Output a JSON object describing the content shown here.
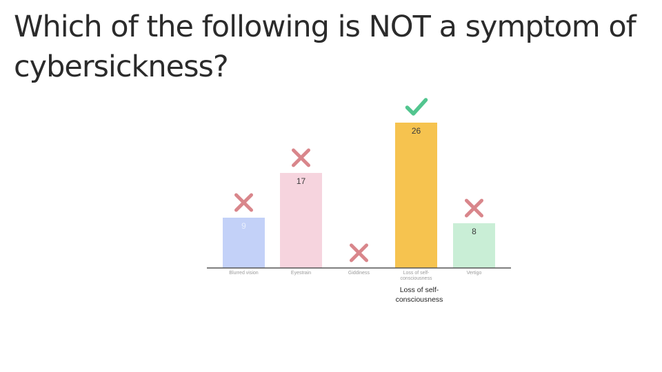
{
  "question": {
    "text": "Which of the following is NOT a symptom of cybersickness?"
  },
  "chart_data": {
    "type": "bar",
    "categories": [
      "Blurred vision",
      "Eyestrain",
      "Giddiness",
      "Loss of self-consciousness",
      "Vertigo"
    ],
    "values": [
      9,
      17,
      0,
      26,
      8
    ],
    "bar_colors": [
      "#c3d1f8",
      "#f6d4de",
      "#e8e8e8",
      "#f6c34f",
      "#c9eed6"
    ],
    "value_label_colors": [
      "#e8eefc",
      "#3a3a3a",
      "#3a3a3a",
      "#3a3a3a",
      "#3a3a3a"
    ],
    "marks": [
      "cross",
      "cross",
      "cross",
      "check",
      "cross"
    ],
    "mark_colors": {
      "cross": "#d9868b",
      "check": "#52c58f"
    },
    "axis_color": "#555555",
    "ylim": [
      0,
      26
    ],
    "grid": false,
    "title": "",
    "xlabel": "",
    "ylabel": ""
  },
  "selected_label": "Loss of self-\nconsciousness"
}
